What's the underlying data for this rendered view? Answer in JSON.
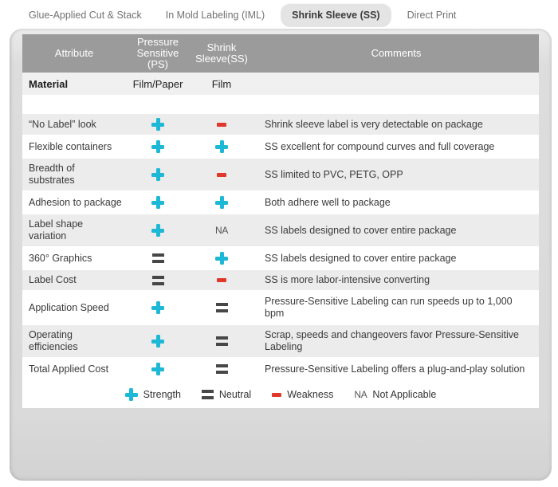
{
  "tabs": [
    {
      "label": "Glue-Applied Cut & Stack",
      "active": false
    },
    {
      "label": "In Mold Labeling (IML)",
      "active": false
    },
    {
      "label": "Shrink Sleeve (SS)",
      "active": true
    },
    {
      "label": "Direct Print",
      "active": false
    }
  ],
  "table": {
    "headers": {
      "attribute": "Attribute",
      "ps": "Pressure Sensitive (PS)",
      "ss": "Shrink Sleeve(SS)",
      "comments": "Comments"
    },
    "material_row": {
      "attribute": "Material",
      "ps": "Film/Paper",
      "ss": "Film"
    },
    "rows": [
      {
        "attribute": "“No Label” look",
        "ps": "plus",
        "ss": "minus",
        "comment": "Shrink sleeve label is very detectable on package"
      },
      {
        "attribute": "Flexible containers",
        "ps": "plus",
        "ss": "plus",
        "comment": "SS excellent for compound curves and full coverage"
      },
      {
        "attribute": "Breadth of substrates",
        "ps": "plus",
        "ss": "minus",
        "comment": "SS limited to PVC, PETG, OPP"
      },
      {
        "attribute": "Adhesion to package",
        "ps": "plus",
        "ss": "plus",
        "comment": "Both adhere well to package"
      },
      {
        "attribute": "Label shape variation",
        "ps": "plus",
        "ss": "NA",
        "comment": "SS labels designed to cover entire package"
      },
      {
        "attribute": "360° Graphics",
        "ps": "equals",
        "ss": "plus",
        "comment": "SS labels designed to cover entire package"
      },
      {
        "attribute": "Label Cost",
        "ps": "equals",
        "ss": "minus",
        "comment": "SS is more labor-intensive converting"
      },
      {
        "attribute": "Application Speed",
        "ps": "plus",
        "ss": "equals",
        "comment": "Pressure-Sensitive Labeling can run speeds up to 1,000 bpm"
      },
      {
        "attribute": "Operating efficiencies",
        "ps": "plus",
        "ss": "equals",
        "comment": "Scrap, speeds and changeovers favor Pressure-Sensitive Labeling"
      },
      {
        "attribute": "Total Applied Cost",
        "ps": "plus",
        "ss": "equals",
        "comment": "Pressure-Sensitive Labeling offers a plug-and-play solution"
      }
    ]
  },
  "legend": [
    {
      "symbol": "plus",
      "label": "Strength"
    },
    {
      "symbol": "equals",
      "label": "Neutral"
    },
    {
      "symbol": "minus",
      "label": "Weakness"
    },
    {
      "symbol": "NA",
      "label": "Not Applicable"
    }
  ],
  "colors": {
    "strength": "#1cb8d6",
    "weakness": "#e2382c",
    "neutral": "#474747",
    "header_bg": "#9b9b9b"
  }
}
